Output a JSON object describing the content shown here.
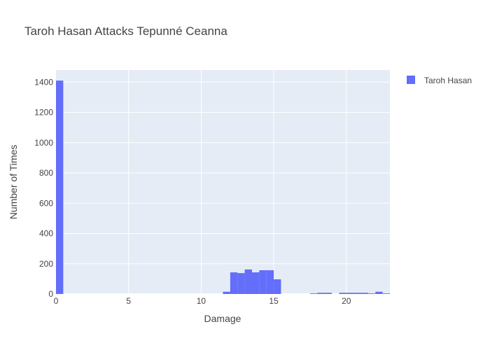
{
  "chart_data": {
    "type": "bar",
    "title": "Taroh Hasan Attacks Tepunné Ceanna",
    "xlabel": "Damage",
    "ylabel": "Number of Times",
    "xlim": [
      0,
      23
    ],
    "ylim": [
      0,
      1480
    ],
    "xticks": [
      0,
      5,
      10,
      15,
      20
    ],
    "yticks": [
      0,
      200,
      400,
      600,
      800,
      1000,
      1200,
      1400
    ],
    "bin_width": 0.5,
    "grid": true,
    "legend_position": "top-right",
    "series": [
      {
        "name": "Taroh Hasan",
        "color": "#636efa",
        "bins": [
          {
            "x": 0,
            "y": 1410
          },
          {
            "x": 11.5,
            "y": 15
          },
          {
            "x": 12,
            "y": 143
          },
          {
            "x": 12.5,
            "y": 138
          },
          {
            "x": 13,
            "y": 162
          },
          {
            "x": 13.5,
            "y": 143
          },
          {
            "x": 14,
            "y": 157
          },
          {
            "x": 14.5,
            "y": 157
          },
          {
            "x": 15,
            "y": 97
          },
          {
            "x": 17.5,
            "y": 4
          },
          {
            "x": 18,
            "y": 8
          },
          {
            "x": 18.5,
            "y": 8
          },
          {
            "x": 19.5,
            "y": 8
          },
          {
            "x": 20,
            "y": 8
          },
          {
            "x": 20.5,
            "y": 8
          },
          {
            "x": 21,
            "y": 8
          },
          {
            "x": 21.5,
            "y": 4
          },
          {
            "x": 22,
            "y": 15
          },
          {
            "x": 22.5,
            "y": 4
          }
        ]
      }
    ]
  }
}
